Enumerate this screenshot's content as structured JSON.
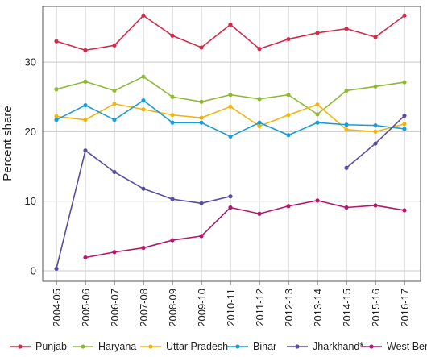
{
  "chart_data": {
    "type": "line",
    "ylabel": "Percent share",
    "xlabel": "",
    "ylim": [
      -1.5,
      38
    ],
    "yticks": [
      0,
      10,
      20,
      30
    ],
    "grid": true,
    "legend_position": "bottom",
    "categories": [
      "2004-05",
      "2005-06",
      "2006-07",
      "2007-08",
      "2008-09",
      "2009-10",
      "2010-11",
      "2011-12",
      "2012-13",
      "2013-14",
      "2014-15",
      "2015-16",
      "2016-17"
    ],
    "series": [
      {
        "name": "Punjab",
        "color": "#d22a4b",
        "values": [
          33.0,
          31.7,
          32.4,
          36.7,
          33.8,
          32.1,
          35.4,
          31.9,
          33.3,
          34.2,
          34.8,
          33.6,
          36.7
        ]
      },
      {
        "name": "Haryana",
        "color": "#8db935",
        "values": [
          26.1,
          27.2,
          25.9,
          27.9,
          25.0,
          24.3,
          25.3,
          24.7,
          25.3,
          22.5,
          25.9,
          26.5,
          27.1
        ]
      },
      {
        "name": "Uttar Pradesh",
        "color": "#f2b50f",
        "values": [
          22.2,
          21.7,
          24.0,
          23.2,
          22.4,
          22.0,
          23.6,
          20.8,
          22.4,
          23.9,
          20.3,
          20.0,
          21.1
        ]
      },
      {
        "name": "Bihar",
        "color": "#1a9cd8",
        "values": [
          21.7,
          23.8,
          21.7,
          24.5,
          21.3,
          21.3,
          19.3,
          21.3,
          19.5,
          21.3,
          21.0,
          20.9,
          20.4
        ]
      },
      {
        "name": "Jharkhand*",
        "color": "#5d4b9e",
        "values": [
          0.3,
          17.3,
          14.2,
          11.8,
          10.3,
          9.7,
          10.7,
          null,
          null,
          null,
          14.8,
          18.3,
          22.3
        ]
      },
      {
        "name": "West Bengal",
        "color": "#b3186c",
        "values": [
          null,
          1.9,
          2.7,
          3.3,
          4.4,
          5.0,
          9.1,
          8.2,
          9.3,
          10.1,
          9.1,
          9.4,
          8.7
        ]
      }
    ]
  }
}
